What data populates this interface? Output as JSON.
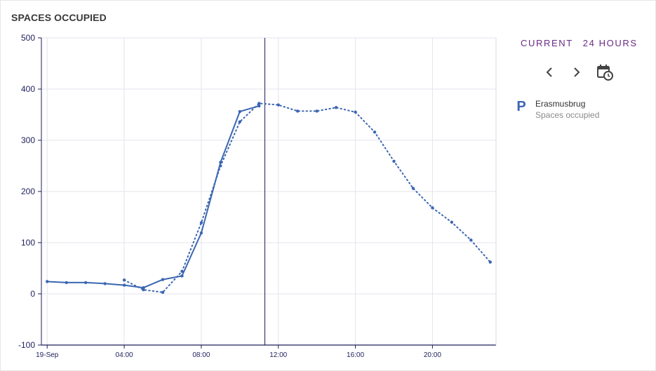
{
  "card": {
    "title": "SPACES OCCUPIED"
  },
  "controls": {
    "tabs": [
      "CURRENT",
      "24 HOURS"
    ],
    "prev_icon": "chevron-left-icon",
    "next_icon": "chevron-right-icon",
    "calendar_icon": "calendar-clock-icon"
  },
  "legend": {
    "marker": "P",
    "name": "Erasmusbrug",
    "subtitle": "Spaces occupied",
    "color": "#3b66b2"
  },
  "chart_data": {
    "type": "line",
    "title": "",
    "xlabel": "",
    "ylabel": "",
    "ylim": [
      -100,
      500
    ],
    "yticks": [
      500,
      400,
      300,
      200,
      100,
      0,
      -100
    ],
    "xlim": [
      -0.3,
      23.3
    ],
    "xticks": [
      {
        "x": 0,
        "label": "19-Sep"
      },
      {
        "x": 4,
        "label": "04:00"
      },
      {
        "x": 8,
        "label": "08:00"
      },
      {
        "x": 12,
        "label": "12:00"
      },
      {
        "x": 16,
        "label": "16:00"
      },
      {
        "x": 20,
        "label": "20:00"
      }
    ],
    "grid": true,
    "current_time_x": 11.3,
    "series": [
      {
        "style": "solid",
        "color": "#3b66b2",
        "points": [
          [
            0,
            24
          ],
          [
            1,
            22
          ],
          [
            2,
            22
          ],
          [
            3,
            20
          ],
          [
            4,
            17
          ],
          [
            5,
            12
          ],
          [
            6,
            28
          ],
          [
            7,
            35
          ],
          [
            8,
            119
          ],
          [
            9,
            257
          ],
          [
            10,
            356
          ],
          [
            11,
            367
          ]
        ]
      },
      {
        "style": "dotted",
        "color": "#3b66b2",
        "points": [
          [
            4,
            27
          ],
          [
            5,
            8
          ],
          [
            6,
            3
          ],
          [
            7,
            44
          ],
          [
            8,
            139
          ],
          [
            9,
            250
          ],
          [
            10,
            336
          ],
          [
            11,
            372
          ],
          [
            12,
            369
          ],
          [
            13,
            357
          ],
          [
            14,
            357
          ],
          [
            15,
            364
          ],
          [
            16,
            355
          ],
          [
            17,
            316
          ],
          [
            18,
            259
          ],
          [
            19,
            206
          ],
          [
            20,
            168
          ],
          [
            21,
            140
          ],
          [
            22,
            105
          ],
          [
            23,
            62
          ]
        ]
      }
    ]
  }
}
